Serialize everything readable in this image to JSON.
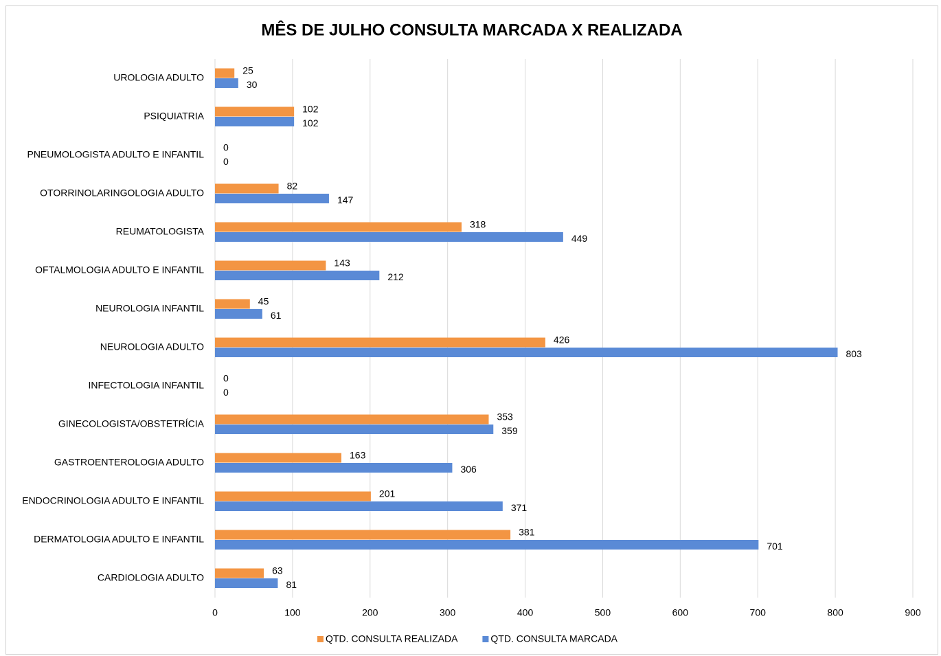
{
  "chart_data": {
    "type": "hbar",
    "title": "MÊS DE JULHO CONSULTA MARCADA X REALIZADA",
    "categories": [
      "UROLOGIA ADULTO",
      "PSIQUIATRIA",
      "PNEUMOLOGISTA ADULTO E INFANTIL",
      "OTORRINOLARINGOLOGIA ADULTO",
      "REUMATOLOGISTA",
      "OFTALMOLOGIA ADULTO E INFANTIL",
      "NEUROLOGIA INFANTIL",
      "NEUROLOGIA ADULTO",
      "INFECTOLOGIA INFANTIL",
      "GINECOLOGISTA/OBSTETRÍCIA",
      "GASTROENTEROLOGIA ADULTO",
      "ENDOCRINOLOGIA ADULTO E INFANTIL",
      "DERMATOLOGIA ADULTO E INFANTIL",
      "CARDIOLOGIA ADULTO"
    ],
    "series": [
      {
        "name": "QTD. CONSULTA REALIZADA",
        "color": "#f39543",
        "values": [
          25,
          102,
          0,
          82,
          318,
          143,
          45,
          426,
          0,
          353,
          163,
          201,
          381,
          63
        ]
      },
      {
        "name": "QTD. CONSULTA MARCADA",
        "color": "#5a8ad6",
        "values": [
          30,
          102,
          0,
          147,
          449,
          212,
          61,
          803,
          0,
          359,
          306,
          371,
          701,
          81
        ]
      }
    ],
    "xlim": [
      0,
      900
    ],
    "xticks": [
      0,
      100,
      200,
      300,
      400,
      500,
      600,
      700,
      800,
      900
    ],
    "grid": true,
    "legend": "bottom"
  }
}
